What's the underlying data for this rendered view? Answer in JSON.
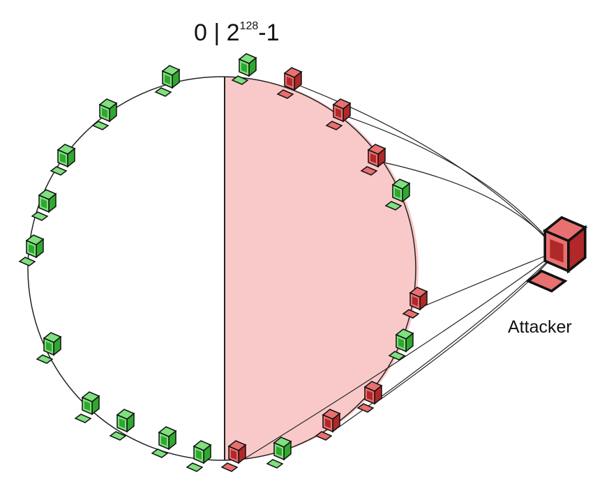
{
  "ring_label": {
    "base": "0 | 2",
    "exponent": "128",
    "suffix": "-1"
  },
  "attacker_label": "Attacker"
}
